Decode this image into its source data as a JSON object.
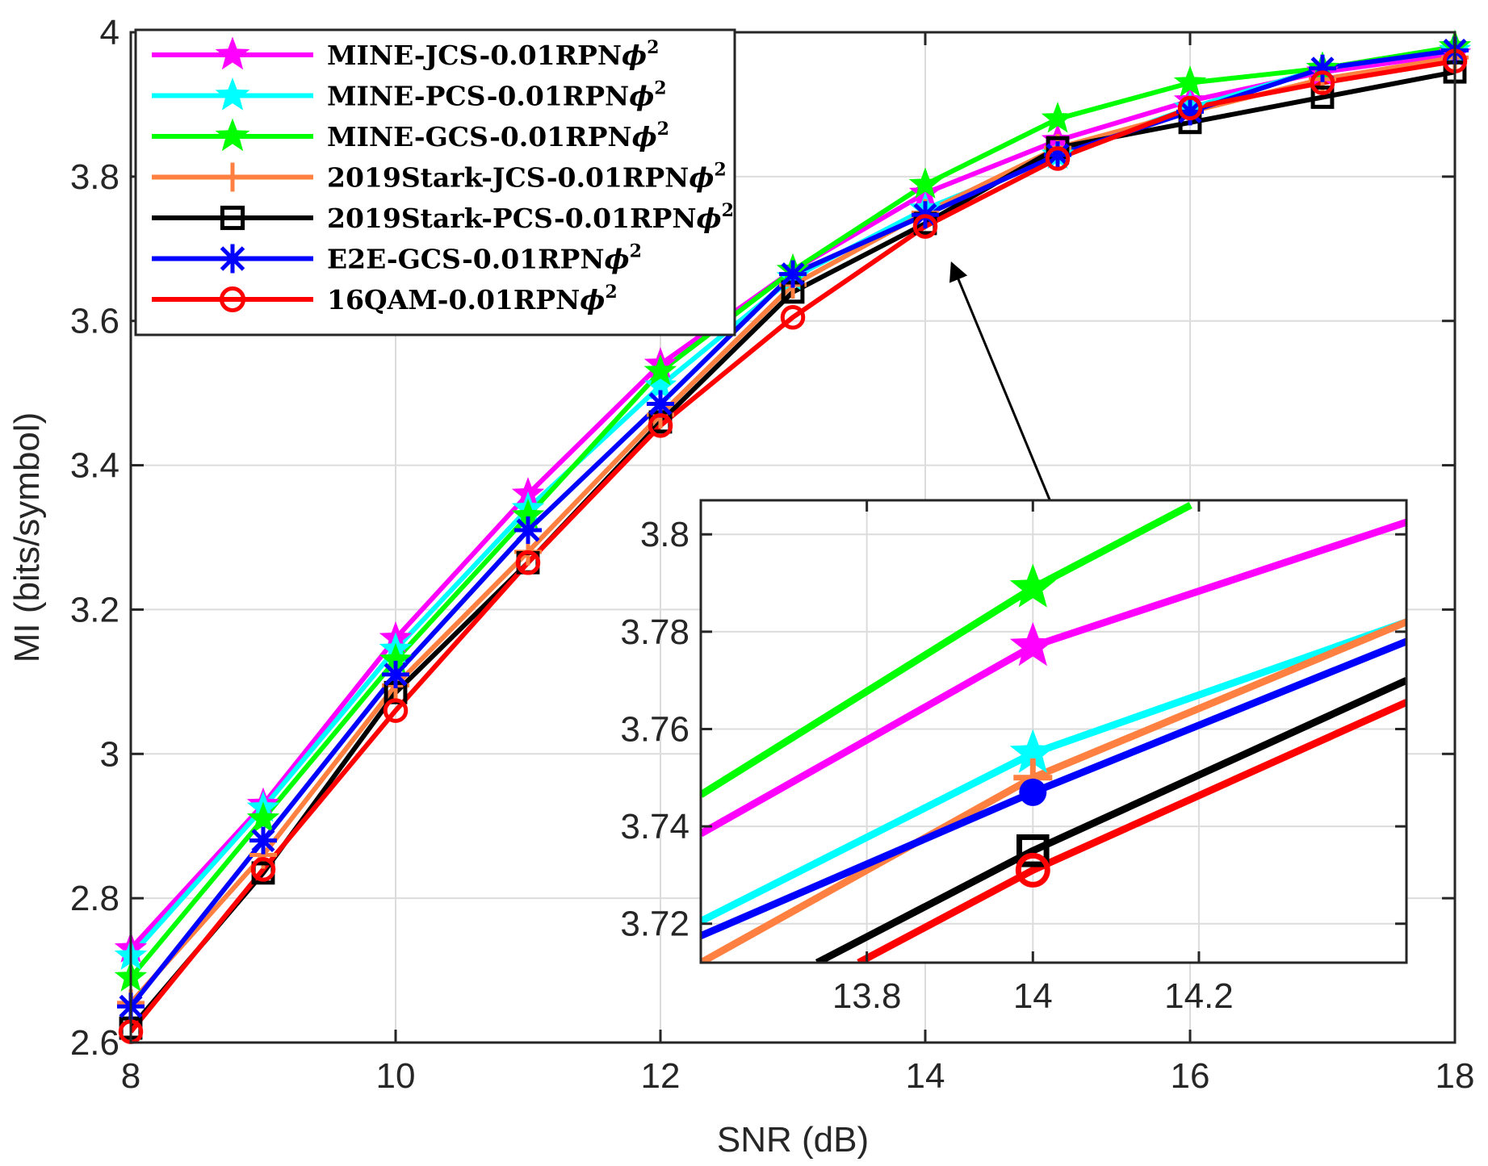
{
  "chart_data": {
    "type": "line",
    "xlabel": "SNR (dB)",
    "ylabel": "MI (bits/symbol)",
    "xlim": [
      8,
      18
    ],
    "ylim": [
      2.6,
      4
    ],
    "xticks": [
      8,
      10,
      12,
      14,
      16,
      18
    ],
    "yticks": [
      2.6,
      2.8,
      3,
      3.2,
      3.4,
      3.6,
      3.8,
      4
    ],
    "ytick_labels": [
      "2.6",
      "2.8",
      "3",
      "3.2",
      "3.4",
      "3.6",
      "3.8",
      "4"
    ],
    "grid": true,
    "legend_position": "top-left",
    "x": [
      8,
      9,
      10,
      11,
      12,
      13,
      14,
      15,
      16,
      17,
      18
    ],
    "series": [
      {
        "name": "MINE-JCS-0.01RPN",
        "color": "#ff00ff",
        "marker": "star",
        "values": [
          2.73,
          2.93,
          3.16,
          3.36,
          3.54,
          3.67,
          3.777,
          3.85,
          3.905,
          3.945,
          3.97
        ]
      },
      {
        "name": "MINE-PCS-0.01RPN",
        "color": "#00ffff",
        "marker": "star",
        "values": [
          2.72,
          2.925,
          3.145,
          3.34,
          3.51,
          3.66,
          3.755,
          3.83,
          3.895,
          3.95,
          3.975
        ]
      },
      {
        "name": "MINE-GCS-0.01RPN",
        "color": "#00ff00",
        "marker": "star",
        "values": [
          2.69,
          2.91,
          3.13,
          3.33,
          3.53,
          3.67,
          3.789,
          3.88,
          3.93,
          3.95,
          3.98
        ]
      },
      {
        "name": "2019Stark-JCS-0.01RPN",
        "color": "#ff8040",
        "marker": "plus",
        "values": [
          2.655,
          2.86,
          3.095,
          3.28,
          3.47,
          3.65,
          3.75,
          3.84,
          3.89,
          3.935,
          3.965
        ]
      },
      {
        "name": "2019Stark-PCS-0.01RPN",
        "color": "#000000",
        "marker": "square",
        "values": [
          2.62,
          2.835,
          3.085,
          3.265,
          3.46,
          3.64,
          3.735,
          3.84,
          3.875,
          3.91,
          3.945
        ]
      },
      {
        "name": "E2E-GCS-0.01RPN",
        "color": "#0000ff",
        "marker": "asterisk",
        "values": [
          2.65,
          2.88,
          3.11,
          3.31,
          3.485,
          3.665,
          3.747,
          3.83,
          3.89,
          3.95,
          3.975
        ]
      },
      {
        "name": "16QAM-0.01RPN",
        "color": "#ff0000",
        "marker": "circle",
        "values": [
          2.615,
          2.84,
          3.06,
          3.265,
          3.455,
          3.605,
          3.731,
          3.825,
          3.895,
          3.93,
          3.96
        ]
      }
    ],
    "legend_suffix": "ϕ",
    "legend_superscript": "2",
    "inset": {
      "xlim": [
        13.6,
        14.45
      ],
      "ylim": [
        3.712,
        3.807
      ],
      "xticks": [
        13.8,
        14,
        14.2
      ],
      "yticks": [
        3.72,
        3.74,
        3.76,
        3.78,
        3.8
      ],
      "ytick_labels": [
        "3.72",
        "3.74",
        "3.76",
        "3.78",
        "3.8"
      ],
      "marker_x": 14,
      "segments": [
        {
          "series": "MINE-GCS-0.01RPN",
          "x": [
            13.6,
            14,
            14.19
          ],
          "y": [
            3.7465,
            3.789,
            3.806
          ]
        },
        {
          "series": "MINE-JCS-0.01RPN",
          "x": [
            13.6,
            14,
            14.45
          ],
          "y": [
            3.7385,
            3.777,
            3.8025
          ]
        },
        {
          "series": "MINE-PCS-0.01RPN",
          "x": [
            13.6,
            14,
            14.45
          ],
          "y": [
            3.7205,
            3.755,
            3.782
          ]
        },
        {
          "series": "2019Stark-JCS-0.01RPN",
          "x": [
            13.6,
            14,
            14.45
          ],
          "y": [
            3.712,
            3.75,
            3.782
          ]
        },
        {
          "series": "E2E-GCS-0.01RPN",
          "x": [
            13.6,
            14,
            14.45
          ],
          "y": [
            3.7175,
            3.747,
            3.778
          ]
        },
        {
          "series": "2019Stark-PCS-0.01RPN",
          "x": [
            13.74,
            14,
            14.45
          ],
          "y": [
            3.712,
            3.735,
            3.77
          ]
        },
        {
          "series": "16QAM-0.01RPN",
          "x": [
            13.79,
            14,
            14.45
          ],
          "y": [
            3.712,
            3.731,
            3.7655
          ]
        }
      ],
      "marker_values": [
        {
          "series": "MINE-GCS-0.01RPN",
          "y": 3.789
        },
        {
          "series": "MINE-JCS-0.01RPN",
          "y": 3.777
        },
        {
          "series": "MINE-PCS-0.01RPN",
          "y": 3.755
        },
        {
          "series": "2019Stark-JCS-0.01RPN",
          "y": 3.75
        },
        {
          "series": "E2E-GCS-0.01RPN",
          "y": 3.747
        },
        {
          "series": "2019Stark-PCS-0.01RPN",
          "y": 3.735
        },
        {
          "series": "16QAM-0.01RPN",
          "y": 3.731
        }
      ]
    },
    "annotation": {
      "type": "arrow",
      "from": "inset-top",
      "to_point": [
        14.2,
        3.68
      ]
    }
  }
}
